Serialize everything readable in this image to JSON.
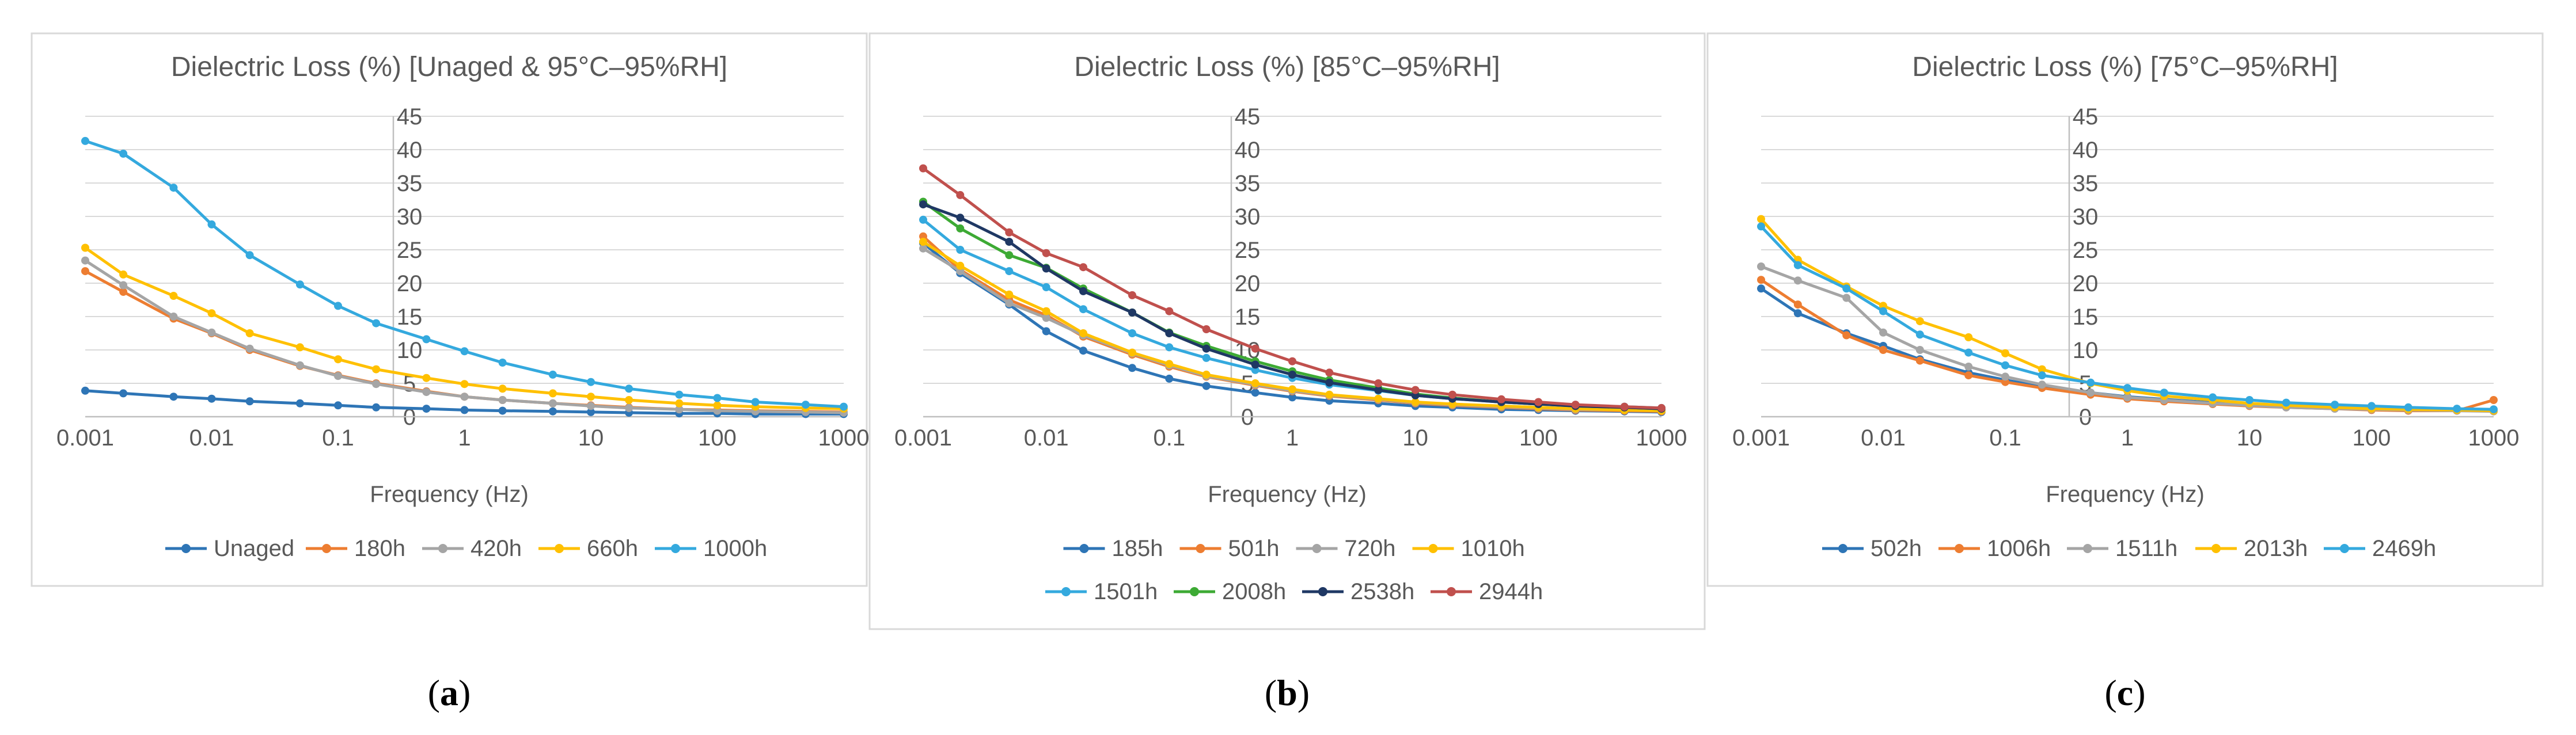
{
  "captions": [
    "a",
    "b",
    "c"
  ],
  "chart_data": [
    {
      "type": "line",
      "title": "Dielectric Loss (%) [Unaged & 95°C–95%RH]",
      "xlabel": "Frequency (Hz)",
      "ylabel": "",
      "xscale": "log",
      "xlim": [
        0.001,
        1000
      ],
      "ylim": [
        0,
        45
      ],
      "x_ticks": [
        "0.001",
        "0.01",
        "0.1",
        "1",
        "10",
        "100",
        "1000"
      ],
      "y_ticks": [
        "0",
        "5",
        "10",
        "15",
        "20",
        "25",
        "30",
        "35",
        "40",
        "45"
      ],
      "legend_position": "bottom",
      "x": [
        0.001,
        0.002,
        0.005,
        0.01,
        0.02,
        0.05,
        0.1,
        0.2,
        0.5,
        1,
        2,
        5,
        10,
        20,
        50,
        100,
        200,
        500,
        1000
      ],
      "series": [
        {
          "name": "Unaged",
          "color": "#2e75b6",
          "values": [
            3.9,
            3.5,
            3.0,
            2.7,
            2.3,
            2.0,
            1.7,
            1.4,
            1.2,
            1.0,
            0.9,
            0.8,
            0.7,
            0.6,
            0.5,
            0.5,
            0.4,
            0.4,
            0.4
          ]
        },
        {
          "name": "180h",
          "color": "#ed7d31",
          "values": [
            21.8,
            18.7,
            14.7,
            12.5,
            10.0,
            7.6,
            6.2,
            5.0,
            3.8,
            3.0,
            2.5,
            2.0,
            1.7,
            1.4,
            1.1,
            1.0,
            0.9,
            0.8,
            0.7
          ]
        },
        {
          "name": "420h",
          "color": "#a5a5a5",
          "values": [
            23.4,
            19.7,
            15.0,
            12.6,
            10.2,
            7.7,
            6.1,
            4.9,
            3.7,
            3.0,
            2.5,
            2.0,
            1.6,
            1.3,
            1.1,
            0.9,
            0.8,
            0.7,
            0.6
          ]
        },
        {
          "name": "660h",
          "color": "#ffc000",
          "values": [
            25.3,
            21.3,
            18.1,
            15.5,
            12.5,
            10.4,
            8.6,
            7.1,
            5.8,
            4.9,
            4.2,
            3.5,
            3.0,
            2.5,
            2.0,
            1.7,
            1.5,
            1.3,
            1.2
          ]
        },
        {
          "name": "1000h",
          "color": "#34a9de",
          "values": [
            41.3,
            39.4,
            34.3,
            28.8,
            24.2,
            19.8,
            16.6,
            14.0,
            11.6,
            9.8,
            8.1,
            6.3,
            5.2,
            4.2,
            3.3,
            2.8,
            2.2,
            1.8,
            1.5
          ]
        }
      ]
    },
    {
      "type": "line",
      "title": "Dielectric Loss (%) [85°C–95%RH]",
      "xlabel": "Frequency (Hz)",
      "ylabel": "",
      "xscale": "log",
      "xlim": [
        0.001,
        1000
      ],
      "ylim": [
        0,
        45
      ],
      "x_ticks": [
        "0.001",
        "0.01",
        "0.1",
        "1",
        "10",
        "100",
        "1000"
      ],
      "y_ticks": [
        "0",
        "5",
        "10",
        "15",
        "20",
        "25",
        "30",
        "35",
        "40",
        "45"
      ],
      "legend_position": "bottom",
      "x": [
        0.001,
        0.002,
        0.005,
        0.01,
        0.02,
        0.05,
        0.1,
        0.2,
        0.5,
        1,
        2,
        5,
        10,
        20,
        50,
        100,
        200,
        500,
        1000
      ],
      "series": [
        {
          "name": "185h",
          "color": "#2e75b6",
          "values": [
            26.0,
            21.5,
            16.8,
            12.8,
            9.9,
            7.3,
            5.7,
            4.6,
            3.6,
            2.9,
            2.4,
            2.0,
            1.6,
            1.4,
            1.1,
            1.0,
            0.9,
            0.8,
            0.7
          ]
        },
        {
          "name": "501h",
          "color": "#ed7d31",
          "values": [
            27.0,
            22.0,
            17.5,
            15.2,
            12.0,
            9.3,
            7.5,
            6.0,
            4.7,
            3.8,
            3.1,
            2.5,
            2.0,
            1.7,
            1.4,
            1.2,
            1.0,
            0.9,
            0.8
          ]
        },
        {
          "name": "720h",
          "color": "#a5a5a5",
          "values": [
            25.2,
            21.8,
            17.0,
            14.8,
            12.2,
            9.5,
            7.7,
            6.1,
            4.8,
            3.9,
            3.2,
            2.6,
            2.1,
            1.8,
            1.5,
            1.3,
            1.1,
            1.0,
            0.9
          ]
        },
        {
          "name": "1010h",
          "color": "#ffc000",
          "values": [
            26.2,
            22.6,
            18.3,
            15.8,
            12.5,
            9.6,
            7.9,
            6.3,
            5.0,
            4.1,
            3.3,
            2.7,
            2.2,
            1.9,
            1.6,
            1.4,
            1.2,
            1.0,
            0.9
          ]
        },
        {
          "name": "1501h",
          "color": "#34a9de",
          "values": [
            29.5,
            25.0,
            21.8,
            19.4,
            16.1,
            12.5,
            10.4,
            8.8,
            7.0,
            5.8,
            4.8,
            3.9,
            3.2,
            2.7,
            2.2,
            1.9,
            1.7,
            1.5,
            1.3
          ]
        },
        {
          "name": "2008h",
          "color": "#3daa34",
          "values": [
            32.2,
            28.2,
            24.2,
            22.3,
            19.2,
            15.6,
            12.6,
            10.6,
            8.3,
            6.8,
            5.5,
            4.3,
            3.4,
            2.8,
            2.2,
            1.9,
            1.6,
            1.4,
            1.2
          ]
        },
        {
          "name": "2538h",
          "color": "#1f3864",
          "values": [
            31.8,
            29.8,
            26.2,
            22.2,
            18.8,
            15.6,
            12.5,
            10.2,
            7.8,
            6.3,
            5.1,
            4.0,
            3.2,
            2.7,
            2.2,
            1.9,
            1.6,
            1.4,
            1.2
          ]
        },
        {
          "name": "2944h",
          "color": "#c0504d",
          "values": [
            37.2,
            33.2,
            27.6,
            24.5,
            22.4,
            18.2,
            15.8,
            13.1,
            10.2,
            8.3,
            6.6,
            5.0,
            4.0,
            3.3,
            2.6,
            2.2,
            1.8,
            1.5,
            1.3
          ]
        }
      ]
    },
    {
      "type": "line",
      "title": "Dielectric Loss (%) [75°C–95%RH]",
      "xlabel": "Frequency (Hz)",
      "ylabel": "",
      "xscale": "log",
      "xlim": [
        0.001,
        1000
      ],
      "ylim": [
        0,
        45
      ],
      "x_ticks": [
        "0.001",
        "0.01",
        "0.1",
        "1",
        "10",
        "100",
        "1000"
      ],
      "y_ticks": [
        "0",
        "5",
        "10",
        "15",
        "20",
        "25",
        "30",
        "35",
        "40",
        "45"
      ],
      "legend_position": "bottom",
      "x": [
        0.001,
        0.002,
        0.005,
        0.01,
        0.02,
        0.05,
        0.1,
        0.2,
        0.5,
        1,
        2,
        5,
        10,
        20,
        50,
        100,
        200,
        500,
        1000
      ],
      "series": [
        {
          "name": "502h",
          "color": "#2e75b6",
          "values": [
            19.2,
            15.5,
            12.5,
            10.6,
            8.6,
            6.6,
            5.5,
            4.5,
            3.6,
            3.0,
            2.6,
            2.1,
            1.8,
            1.5,
            1.3,
            1.2,
            1.1,
            1.0,
            0.9
          ]
        },
        {
          "name": "1006h",
          "color": "#ed7d31",
          "values": [
            20.5,
            16.8,
            12.2,
            10.0,
            8.4,
            6.2,
            5.2,
            4.3,
            3.3,
            2.7,
            2.3,
            1.9,
            1.6,
            1.4,
            1.2,
            1.0,
            0.9,
            0.9,
            2.5
          ]
        },
        {
          "name": "1511h",
          "color": "#a5a5a5",
          "values": [
            22.5,
            20.4,
            17.8,
            12.6,
            10.0,
            7.5,
            6.0,
            4.8,
            3.6,
            2.9,
            2.5,
            2.0,
            1.7,
            1.4,
            1.2,
            1.1,
            1.0,
            0.9,
            0.8
          ]
        },
        {
          "name": "2013h",
          "color": "#ffc000",
          "values": [
            29.6,
            23.5,
            19.5,
            16.6,
            14.3,
            11.9,
            9.5,
            7.1,
            5.0,
            3.9,
            3.1,
            2.5,
            2.0,
            1.7,
            1.4,
            1.2,
            1.1,
            1.0,
            0.9
          ]
        },
        {
          "name": "2469h",
          "color": "#34a9de",
          "values": [
            28.5,
            22.7,
            19.2,
            15.8,
            12.3,
            9.6,
            7.7,
            6.2,
            5.1,
            4.3,
            3.6,
            2.9,
            2.5,
            2.1,
            1.8,
            1.6,
            1.4,
            1.2,
            1.1
          ]
        }
      ]
    }
  ]
}
